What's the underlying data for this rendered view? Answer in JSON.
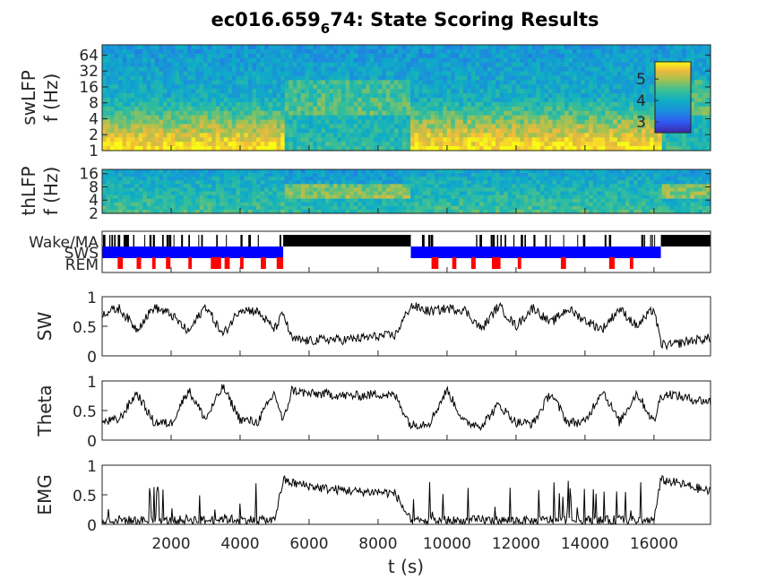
{
  "title": {
    "main": "ec016.659",
    "sub": "6",
    "end": "74: State Scoring Results"
  },
  "xaxis": {
    "label": "t (s)",
    "min": 0,
    "max": 17640,
    "ticks": [
      2000,
      4000,
      6000,
      8000,
      10000,
      12000,
      14000,
      16000
    ]
  },
  "chart_data": [
    {
      "type": "heatmap",
      "name": "swLFP spectrogram",
      "ylabel_lines": [
        "swLFP",
        "f (Hz)"
      ],
      "yscale": "log",
      "ylim": [
        1,
        100
      ],
      "yticks": [
        1,
        2,
        4,
        8,
        16,
        32,
        64
      ],
      "colormap": "parula",
      "colorbar": {
        "ticks": [
          3,
          4,
          5
        ],
        "range": [
          2.5,
          5.8
        ],
        "placement": "inside-right"
      }
    },
    {
      "type": "heatmap",
      "name": "thLFP spectrogram",
      "ylabel_lines": [
        "thLFP",
        "f (Hz)"
      ],
      "yscale": "log",
      "ylim": [
        2,
        20
      ],
      "yticks": [
        2,
        4,
        8,
        16
      ],
      "colormap": "parula"
    },
    {
      "type": "bar",
      "name": "state hypnogram",
      "states": [
        "Wake/MA",
        "SWS",
        "REM"
      ],
      "colors": {
        "Wake/MA": "#000000",
        "SWS": "#0000ff",
        "REM": "#ff0000"
      },
      "segments": [
        {
          "state": "SWS",
          "start": 0,
          "end": 5250
        },
        {
          "state": "Wake/MA",
          "start": 5250,
          "end": 8950
        },
        {
          "state": "SWS",
          "start": 8950,
          "end": 16200
        },
        {
          "state": "Wake/MA",
          "start": 16200,
          "end": 17640
        }
      ],
      "rem_bouts": [
        [
          450,
          600
        ],
        [
          1000,
          1130
        ],
        [
          1450,
          1550
        ],
        [
          1850,
          1980
        ],
        [
          2500,
          2600
        ],
        [
          3150,
          3450
        ],
        [
          3550,
          3700
        ],
        [
          4000,
          4100
        ],
        [
          4600,
          4750
        ],
        [
          5060,
          5250
        ],
        [
          9550,
          9750
        ],
        [
          10150,
          10270
        ],
        [
          10700,
          10830
        ],
        [
          11300,
          11550
        ],
        [
          12050,
          12150
        ],
        [
          13300,
          13450
        ],
        [
          14700,
          14860
        ],
        [
          15300,
          15400
        ]
      ]
    },
    {
      "type": "line",
      "name": "SW",
      "ylabel": "SW",
      "ylim": [
        0,
        1
      ],
      "yticks": [
        "0",
        "0.5",
        "1"
      ],
      "x": [
        0,
        500,
        1000,
        1500,
        2000,
        2500,
        3000,
        3500,
        4000,
        4500,
        5000,
        5250,
        5500,
        6000,
        6500,
        7000,
        7500,
        8000,
        8500,
        8950,
        9500,
        10000,
        10500,
        11000,
        11500,
        12000,
        12500,
        13000,
        13500,
        14000,
        14500,
        15000,
        15500,
        16000,
        16200,
        16500,
        17000,
        17640
      ],
      "values": [
        0.72,
        0.8,
        0.45,
        0.82,
        0.7,
        0.4,
        0.85,
        0.35,
        0.8,
        0.75,
        0.45,
        0.72,
        0.28,
        0.25,
        0.28,
        0.27,
        0.3,
        0.33,
        0.35,
        0.85,
        0.75,
        0.8,
        0.78,
        0.45,
        0.85,
        0.5,
        0.82,
        0.55,
        0.8,
        0.6,
        0.45,
        0.8,
        0.5,
        0.8,
        0.2,
        0.18,
        0.25,
        0.3
      ]
    },
    {
      "type": "line",
      "name": "Theta",
      "ylabel": "Theta",
      "ylim": [
        0,
        1
      ],
      "yticks": [
        "0",
        "0.5",
        "1"
      ],
      "x": [
        0,
        500,
        1000,
        1500,
        2000,
        2500,
        3000,
        3500,
        4000,
        4500,
        5000,
        5250,
        5500,
        6000,
        6500,
        7000,
        7500,
        8000,
        8500,
        8950,
        9500,
        10000,
        10500,
        11000,
        11500,
        12000,
        12500,
        13000,
        13500,
        14000,
        14500,
        15000,
        15500,
        16000,
        16200,
        16500,
        17000,
        17640
      ],
      "values": [
        0.3,
        0.35,
        0.8,
        0.3,
        0.28,
        0.85,
        0.35,
        0.9,
        0.35,
        0.3,
        0.8,
        0.3,
        0.85,
        0.78,
        0.78,
        0.75,
        0.75,
        0.78,
        0.75,
        0.25,
        0.3,
        0.85,
        0.3,
        0.25,
        0.6,
        0.3,
        0.28,
        0.8,
        0.3,
        0.3,
        0.85,
        0.3,
        0.8,
        0.3,
        0.75,
        0.78,
        0.7,
        0.65
      ]
    },
    {
      "type": "line",
      "name": "EMG",
      "ylabel": "EMG",
      "ylim": [
        0,
        1
      ],
      "yticks": [
        "0",
        "0.5",
        "1"
      ],
      "x": [
        0,
        500,
        1000,
        1500,
        2000,
        2500,
        3000,
        3500,
        4000,
        4500,
        5000,
        5250,
        5500,
        6000,
        6500,
        7000,
        7500,
        8000,
        8500,
        8950,
        9500,
        10000,
        10500,
        11000,
        11500,
        12000,
        12500,
        13000,
        13500,
        14000,
        14500,
        15000,
        15500,
        16000,
        16200,
        16500,
        17000,
        17640
      ],
      "values": [
        0.05,
        0.08,
        0.06,
        0.07,
        0.05,
        0.09,
        0.06,
        0.1,
        0.07,
        0.08,
        0.06,
        0.75,
        0.7,
        0.65,
        0.6,
        0.58,
        0.55,
        0.55,
        0.52,
        0.05,
        0.06,
        0.07,
        0.05,
        0.08,
        0.06,
        0.07,
        0.05,
        0.08,
        0.06,
        0.07,
        0.06,
        0.08,
        0.06,
        0.07,
        0.75,
        0.72,
        0.65,
        0.55
      ]
    }
  ]
}
